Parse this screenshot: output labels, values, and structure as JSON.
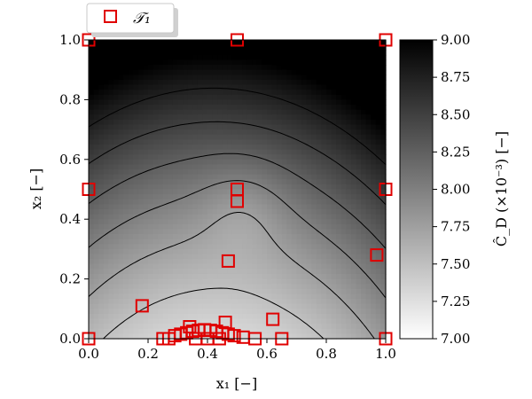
{
  "chart_data": {
    "type": "scatter",
    "background": "contour",
    "xlabel": "x₁ [−]",
    "ylabel": "x₂ [−]",
    "xlim": [
      0.0,
      1.0
    ],
    "ylim": [
      0.0,
      1.0
    ],
    "xticks": [
      "0.0",
      "0.2",
      "0.4",
      "0.6",
      "0.8",
      "1.0"
    ],
    "yticks": [
      "0.0",
      "0.2",
      "0.4",
      "0.6",
      "0.8",
      "1.0"
    ],
    "grid": false,
    "legend": {
      "location": "top-left",
      "entries": [
        "𝒯₁"
      ]
    },
    "colorbar": {
      "label": "Ĉ_D (×10⁻³) [−]",
      "range": [
        7.0,
        9.0
      ],
      "ticks": [
        "7.00",
        "7.25",
        "7.50",
        "7.75",
        "8.00",
        "8.25",
        "8.50",
        "8.75",
        "9.00"
      ],
      "colormap": "white-to-black"
    },
    "contour_levels": [
      7.25,
      7.5,
      7.75,
      8.0,
      8.25,
      8.5,
      8.75
    ],
    "series": [
      {
        "name": "𝒯₁",
        "marker": "hollow-square",
        "color": "#e00000",
        "x": [
          0.0,
          0.5,
          1.0,
          0.0,
          0.5,
          0.5,
          1.0,
          0.47,
          0.97,
          0.18,
          0.0,
          0.25,
          0.27,
          0.34,
          0.46,
          0.62,
          0.65,
          1.0,
          0.29,
          0.31,
          0.33,
          0.35,
          0.37,
          0.39,
          0.41,
          0.43,
          0.45,
          0.47,
          0.49,
          0.52,
          0.56,
          0.36,
          0.4,
          0.44
        ],
        "y": [
          1.0,
          1.0,
          1.0,
          0.5,
          0.5,
          0.46,
          0.5,
          0.26,
          0.28,
          0.11,
          0.0,
          0.0,
          0.0,
          0.04,
          0.055,
          0.065,
          0.0,
          0.0,
          0.01,
          0.015,
          0.02,
          0.025,
          0.028,
          0.03,
          0.028,
          0.025,
          0.02,
          0.015,
          0.01,
          0.005,
          0.0,
          0.0,
          0.0,
          0.0
        ]
      }
    ]
  }
}
